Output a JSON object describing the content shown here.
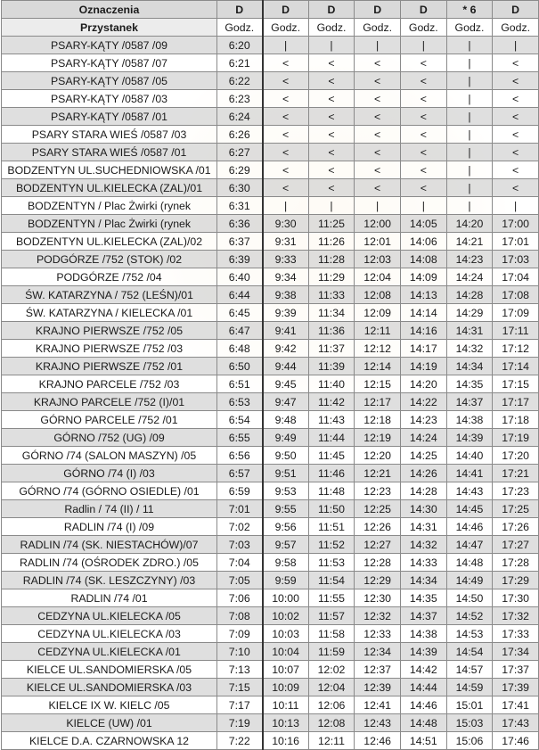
{
  "header": {
    "labels_title": "Oznaczenia",
    "stop_title": "Przystanek",
    "markers": [
      "D",
      "D",
      "D",
      "D",
      "D",
      "* 6",
      "D"
    ],
    "time_label": "Godz."
  },
  "rows": [
    {
      "stop": "PSARY-KĄTY /0587 /09",
      "t": [
        "6:20",
        "|",
        "|",
        "|",
        "|",
        "|",
        "|"
      ]
    },
    {
      "stop": "PSARY-KĄTY /0587 /07",
      "t": [
        "6:21",
        "<",
        "<",
        "<",
        "<",
        "|",
        "<"
      ]
    },
    {
      "stop": "PSARY-KĄTY /0587 /05",
      "t": [
        "6:22",
        "<",
        "<",
        "<",
        "<",
        "|",
        "<"
      ]
    },
    {
      "stop": "PSARY-KĄTY /0587 /03",
      "t": [
        "6:23",
        "<",
        "<",
        "<",
        "<",
        "|",
        "<"
      ]
    },
    {
      "stop": "PSARY-KĄTY /0587 /01",
      "t": [
        "6:24",
        "<",
        "<",
        "<",
        "<",
        "|",
        "<"
      ]
    },
    {
      "stop": "PSARY STARA WIEŚ /0587 /03",
      "t": [
        "6:26",
        "<",
        "<",
        "<",
        "<",
        "|",
        "<"
      ]
    },
    {
      "stop": "PSARY STARA WIEŚ /0587 /01",
      "t": [
        "6:27",
        "<",
        "<",
        "<",
        "<",
        "|",
        "<"
      ]
    },
    {
      "stop": "BODZENTYN UL.SUCHEDNIOWSKA /01",
      "t": [
        "6:29",
        "<",
        "<",
        "<",
        "<",
        "|",
        "<"
      ]
    },
    {
      "stop": "BODZENTYN UL.KIELECKA (ZAL)/01",
      "t": [
        "6:30",
        "<",
        "<",
        "<",
        "<",
        "|",
        "<"
      ]
    },
    {
      "stop": "BODZENTYN / Plac Żwirki (rynek",
      "t": [
        "6:31",
        "|",
        "|",
        "|",
        "|",
        "|",
        "|"
      ]
    },
    {
      "stop": "BODZENTYN / Plac Żwirki (rynek",
      "t": [
        "6:36",
        "9:30",
        "11:25",
        "12:00",
        "14:05",
        "14:20",
        "17:00"
      ]
    },
    {
      "stop": "BODZENTYN UL.KIELECKA (ZAL)/02",
      "t": [
        "6:37",
        "9:31",
        "11:26",
        "12:01",
        "14:06",
        "14:21",
        "17:01"
      ]
    },
    {
      "stop": "PODGÓRZE /752 (STOK) /02",
      "t": [
        "6:39",
        "9:33",
        "11:28",
        "12:03",
        "14:08",
        "14:23",
        "17:03"
      ]
    },
    {
      "stop": "PODGÓRZE /752 /04",
      "t": [
        "6:40",
        "9:34",
        "11:29",
        "12:04",
        "14:09",
        "14:24",
        "17:04"
      ]
    },
    {
      "stop": "ŚW. KATARZYNA / 752 (LEŚN)/01",
      "t": [
        "6:44",
        "9:38",
        "11:33",
        "12:08",
        "14:13",
        "14:28",
        "17:08"
      ]
    },
    {
      "stop": "ŚW. KATARZYNA / KIELECKA /01",
      "t": [
        "6:45",
        "9:39",
        "11:34",
        "12:09",
        "14:14",
        "14:29",
        "17:09"
      ]
    },
    {
      "stop": "KRAJNO PIERWSZE /752 /05",
      "t": [
        "6:47",
        "9:41",
        "11:36",
        "12:11",
        "14:16",
        "14:31",
        "17:11"
      ]
    },
    {
      "stop": "KRAJNO PIERWSZE /752 /03",
      "t": [
        "6:48",
        "9:42",
        "11:37",
        "12:12",
        "14:17",
        "14:32",
        "17:12"
      ]
    },
    {
      "stop": "KRAJNO PIERWSZE /752 /01",
      "t": [
        "6:50",
        "9:44",
        "11:39",
        "12:14",
        "14:19",
        "14:34",
        "17:14"
      ]
    },
    {
      "stop": "KRAJNO PARCELE /752 /03",
      "t": [
        "6:51",
        "9:45",
        "11:40",
        "12:15",
        "14:20",
        "14:35",
        "17:15"
      ]
    },
    {
      "stop": "KRAJNO PARCELE /752 (I)/01",
      "t": [
        "6:53",
        "9:47",
        "11:42",
        "12:17",
        "14:22",
        "14:37",
        "17:17"
      ]
    },
    {
      "stop": "GÓRNO PARCELE /752 /01",
      "t": [
        "6:54",
        "9:48",
        "11:43",
        "12:18",
        "14:23",
        "14:38",
        "17:18"
      ]
    },
    {
      "stop": "GÓRNO /752 (UG) /09",
      "t": [
        "6:55",
        "9:49",
        "11:44",
        "12:19",
        "14:24",
        "14:39",
        "17:19"
      ]
    },
    {
      "stop": "GÓRNO /74 (SALON MASZYN) /05",
      "t": [
        "6:56",
        "9:50",
        "11:45",
        "12:20",
        "14:25",
        "14:40",
        "17:20"
      ]
    },
    {
      "stop": "GÓRNO /74 (I) /03",
      "t": [
        "6:57",
        "9:51",
        "11:46",
        "12:21",
        "14:26",
        "14:41",
        "17:21"
      ]
    },
    {
      "stop": "GÓRNO /74 (GÓRNO OSIEDLE) /01",
      "t": [
        "6:59",
        "9:53",
        "11:48",
        "12:23",
        "14:28",
        "14:43",
        "17:23"
      ]
    },
    {
      "stop": "Radlin / 74 (II) / 11",
      "t": [
        "7:01",
        "9:55",
        "11:50",
        "12:25",
        "14:30",
        "14:45",
        "17:25"
      ]
    },
    {
      "stop": "RADLIN /74 (I) /09",
      "t": [
        "7:02",
        "9:56",
        "11:51",
        "12:26",
        "14:31",
        "14:46",
        "17:26"
      ]
    },
    {
      "stop": "RADLIN /74 (SK. NIESTACHÓW)/07",
      "t": [
        "7:03",
        "9:57",
        "11:52",
        "12:27",
        "14:32",
        "14:47",
        "17:27"
      ]
    },
    {
      "stop": "RADLIN /74 (OŚRODEK ZDRO.) /05",
      "t": [
        "7:04",
        "9:58",
        "11:53",
        "12:28",
        "14:33",
        "14:48",
        "17:28"
      ]
    },
    {
      "stop": "RADLIN /74 (SK. LESZCZYNY) /03",
      "t": [
        "7:05",
        "9:59",
        "11:54",
        "12:29",
        "14:34",
        "14:49",
        "17:29"
      ]
    },
    {
      "stop": "RADLIN /74 /01",
      "t": [
        "7:06",
        "10:00",
        "11:55",
        "12:30",
        "14:35",
        "14:50",
        "17:30"
      ]
    },
    {
      "stop": "CEDZYNA UL.KIELECKA /05",
      "t": [
        "7:08",
        "10:02",
        "11:57",
        "12:32",
        "14:37",
        "14:52",
        "17:32"
      ]
    },
    {
      "stop": "CEDZYNA UL.KIELECKA /03",
      "t": [
        "7:09",
        "10:03",
        "11:58",
        "12:33",
        "14:38",
        "14:53",
        "17:33"
      ]
    },
    {
      "stop": "CEDZYNA UL.KIELECKA /01",
      "t": [
        "7:10",
        "10:04",
        "11:59",
        "12:34",
        "14:39",
        "14:54",
        "17:34"
      ]
    },
    {
      "stop": "KIELCE UL.SANDOMIERSKA /05",
      "t": [
        "7:13",
        "10:07",
        "12:02",
        "12:37",
        "14:42",
        "14:57",
        "17:37"
      ]
    },
    {
      "stop": "KIELCE UL.SANDOMIERSKA /03",
      "t": [
        "7:15",
        "10:09",
        "12:04",
        "12:39",
        "14:44",
        "14:59",
        "17:39"
      ]
    },
    {
      "stop": "KIELCE IX W. KIELC /05",
      "t": [
        "7:17",
        "10:11",
        "12:06",
        "12:41",
        "14:46",
        "15:01",
        "17:41"
      ]
    },
    {
      "stop": "KIELCE (UW) /01",
      "t": [
        "7:19",
        "10:13",
        "12:08",
        "12:43",
        "14:48",
        "15:03",
        "17:43"
      ]
    },
    {
      "stop": "KIELCE D.A. CZARNOWSKA 12",
      "t": [
        "7:22",
        "10:16",
        "12:11",
        "12:46",
        "14:51",
        "15:06",
        "17:46"
      ]
    }
  ]
}
